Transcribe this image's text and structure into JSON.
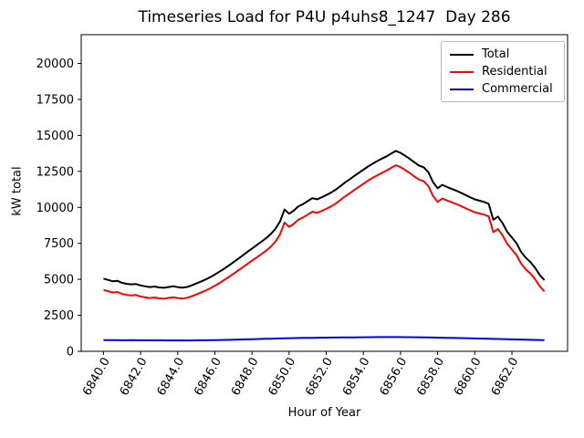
{
  "chart_data": {
    "type": "line",
    "title": "Timeseries Load for P4U p4uhs8_1247  Day 286",
    "xlabel": "Hour of Year",
    "ylabel": "kW total",
    "xlim": [
      6838.8,
      6865.0
    ],
    "ylim": [
      0,
      22000
    ],
    "grid": false,
    "legend_position": "upper right",
    "xticks": [
      6840,
      6842,
      6844,
      6846,
      6848,
      6850,
      6852,
      6854,
      6856,
      6858,
      6860,
      6862
    ],
    "xtick_labels": [
      "6840.0",
      "6842.0",
      "6844.0",
      "6846.0",
      "6848.0",
      "6850.0",
      "6852.0",
      "6854.0",
      "6856.0",
      "6858.0",
      "6860.0",
      "6862.0"
    ],
    "yticks": [
      0,
      2500,
      5000,
      7500,
      10000,
      12500,
      15000,
      17500,
      20000
    ],
    "ytick_labels": [
      "0",
      "2500",
      "5000",
      "7500",
      "10000",
      "12500",
      "15000",
      "17500",
      "20000"
    ],
    "x": [
      6840.0,
      6840.25,
      6840.5,
      6840.75,
      6841.0,
      6841.25,
      6841.5,
      6841.75,
      6842.0,
      6842.25,
      6842.5,
      6842.75,
      6843.0,
      6843.25,
      6843.5,
      6843.75,
      6844.0,
      6844.25,
      6844.5,
      6844.75,
      6845.0,
      6845.25,
      6845.5,
      6845.75,
      6846.0,
      6846.25,
      6846.5,
      6846.75,
      6847.0,
      6847.25,
      6847.5,
      6847.75,
      6848.0,
      6848.25,
      6848.5,
      6848.75,
      6849.0,
      6849.25,
      6849.5,
      6849.75,
      6850.0,
      6850.25,
      6850.5,
      6850.75,
      6851.0,
      6851.25,
      6851.5,
      6851.75,
      6852.0,
      6852.25,
      6852.5,
      6852.75,
      6853.0,
      6853.25,
      6853.5,
      6853.75,
      6854.0,
      6854.25,
      6854.5,
      6854.75,
      6855.0,
      6855.25,
      6855.5,
      6855.75,
      6856.0,
      6856.25,
      6856.5,
      6856.75,
      6857.0,
      6857.25,
      6857.5,
      6857.75,
      6858.0,
      6858.25,
      6858.5,
      6858.75,
      6859.0,
      6859.25,
      6859.5,
      6859.75,
      6860.0,
      6860.25,
      6860.5,
      6860.75,
      6861.0,
      6861.25,
      6861.5,
      6861.75,
      6862.0,
      6862.25,
      6862.5,
      6862.75,
      6863.0,
      6863.25,
      6863.5,
      6863.75
    ],
    "series": [
      {
        "name": "Total",
        "color": "#000000",
        "values": [
          5050,
          4955,
          4868,
          4892,
          4760,
          4688,
          4652,
          4675,
          4578,
          4512,
          4465,
          4500,
          4438,
          4412,
          4466,
          4520,
          4455,
          4418,
          4472,
          4576,
          4710,
          4844,
          4988,
          5152,
          5338,
          5534,
          5740,
          5958,
          6186,
          6425,
          6664,
          6903,
          7142,
          7371,
          7610,
          7849,
          8128,
          8487,
          8995,
          9853,
          9560,
          9767,
          10073,
          10229,
          10434,
          10639,
          10564,
          10698,
          10852,
          11016,
          11220,
          11463,
          11716,
          11939,
          12172,
          12395,
          12618,
          12841,
          13034,
          13216,
          13388,
          13550,
          13741,
          13920,
          13788,
          13585,
          13362,
          13128,
          12904,
          12789,
          12444,
          11758,
          11332,
          11566,
          11420,
          11293,
          11166,
          11019,
          10862,
          10705,
          10557,
          10469,
          10381,
          10253,
          9145,
          9357,
          8899,
          8301,
          7903,
          7505,
          6907,
          6499,
          6201,
          5803,
          5305,
          4948
        ]
      },
      {
        "name": "Residential",
        "color": "#ff0000",
        "values": [
          4270,
          4180,
          4090,
          4120,
          3990,
          3920,
          3880,
          3910,
          3810,
          3750,
          3700,
          3740,
          3680,
          3650,
          3710,
          3760,
          3700,
          3660,
          3720,
          3820,
          3950,
          4080,
          4220,
          4380,
          4560,
          4750,
          4950,
          5160,
          5380,
          5610,
          5840,
          6070,
          6300,
          6520,
          6750,
          6980,
          7250,
          7600,
          8100,
          8950,
          8650,
          8850,
          9150,
          9300,
          9500,
          9700,
          9620,
          9750,
          9900,
          10060,
          10260,
          10500,
          10750,
          10970,
          11200,
          11420,
          11640,
          11860,
          12050,
          12230,
          12400,
          12560,
          12750,
          12930,
          12800,
          12600,
          12380,
          12150,
          11930,
          11820,
          11480,
          10800,
          10380,
          10620,
          10480,
          10360,
          10240,
          10100,
          9950,
          9800,
          9660,
          9580,
          9500,
          9380,
          8280,
          8500,
          8050,
          7460,
          7070,
          6680,
          6090,
          5690,
          5400,
          5010,
          4520,
          4170
        ]
      },
      {
        "name": "Commercial",
        "color": "#0000ff",
        "values": [
          780,
          775,
          778,
          772,
          770,
          768,
          772,
          765,
          768,
          762,
          765,
          760,
          758,
          762,
          756,
          760,
          755,
          758,
          752,
          756,
          760,
          764,
          768,
          772,
          778,
          784,
          790,
          798,
          806,
          815,
          824,
          833,
          842,
          851,
          860,
          869,
          878,
          887,
          895,
          903,
          910,
          917,
          923,
          929,
          934,
          939,
          944,
          948,
          952,
          956,
          960,
          963,
          966,
          969,
          972,
          975,
          978,
          981,
          984,
          986,
          988,
          990,
          991,
          990,
          988,
          985,
          982,
          978,
          974,
          969,
          964,
          958,
          952,
          946,
          940,
          933,
          926,
          919,
          912,
          905,
          897,
          889,
          881,
          873,
          865,
          857,
          849,
          841,
          833,
          825,
          817,
          809,
          801,
          793,
          785,
          778
        ]
      }
    ]
  }
}
